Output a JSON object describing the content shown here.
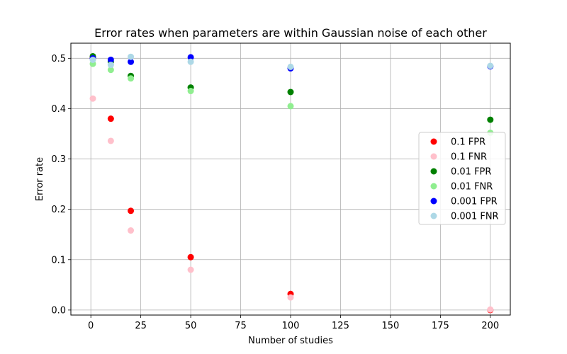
{
  "chart_data": {
    "type": "scatter",
    "title": "Error rates when parameters are within Gaussian noise of each other",
    "xlabel": "Number of studies",
    "ylabel": "Error rate",
    "xlim": [
      -10,
      210
    ],
    "ylim": [
      -0.01,
      0.53
    ],
    "xticks": [
      0,
      25,
      50,
      75,
      100,
      125,
      150,
      175,
      200
    ],
    "yticks": [
      0.0,
      0.1,
      0.2,
      0.3,
      0.4,
      0.5
    ],
    "xtick_labels": [
      "0",
      "25",
      "50",
      "75",
      "100",
      "125",
      "150",
      "175",
      "200"
    ],
    "ytick_labels": [
      "0.0",
      "0.1",
      "0.2",
      "0.3",
      "0.4",
      "0.5"
    ],
    "grid": true,
    "legend_position": "center-right",
    "x": [
      1,
      10,
      20,
      50,
      100,
      200
    ],
    "series": [
      {
        "name": "0.1 FPR",
        "color": "#ff0000",
        "values": [
          0.502,
          0.38,
          0.197,
          0.105,
          0.032,
          0.0
        ]
      },
      {
        "name": "0.1 FNR",
        "color": "#ffc0cb",
        "values": [
          0.42,
          0.336,
          0.158,
          0.08,
          0.025,
          0.001
        ]
      },
      {
        "name": "0.01 FPR",
        "color": "#008000",
        "values": [
          0.504,
          0.493,
          0.465,
          0.442,
          0.433,
          0.378
        ]
      },
      {
        "name": "0.01 FNR",
        "color": "#90ee90",
        "values": [
          0.489,
          0.477,
          0.46,
          0.435,
          0.405,
          0.352
        ]
      },
      {
        "name": "0.001 FPR",
        "color": "#0000ff",
        "values": [
          0.5,
          0.497,
          0.493,
          0.502,
          0.48,
          0.484
        ]
      },
      {
        "name": "0.001 FNR",
        "color": "#add8e6",
        "values": [
          0.497,
          0.487,
          0.503,
          0.493,
          0.483,
          0.485
        ]
      }
    ]
  }
}
